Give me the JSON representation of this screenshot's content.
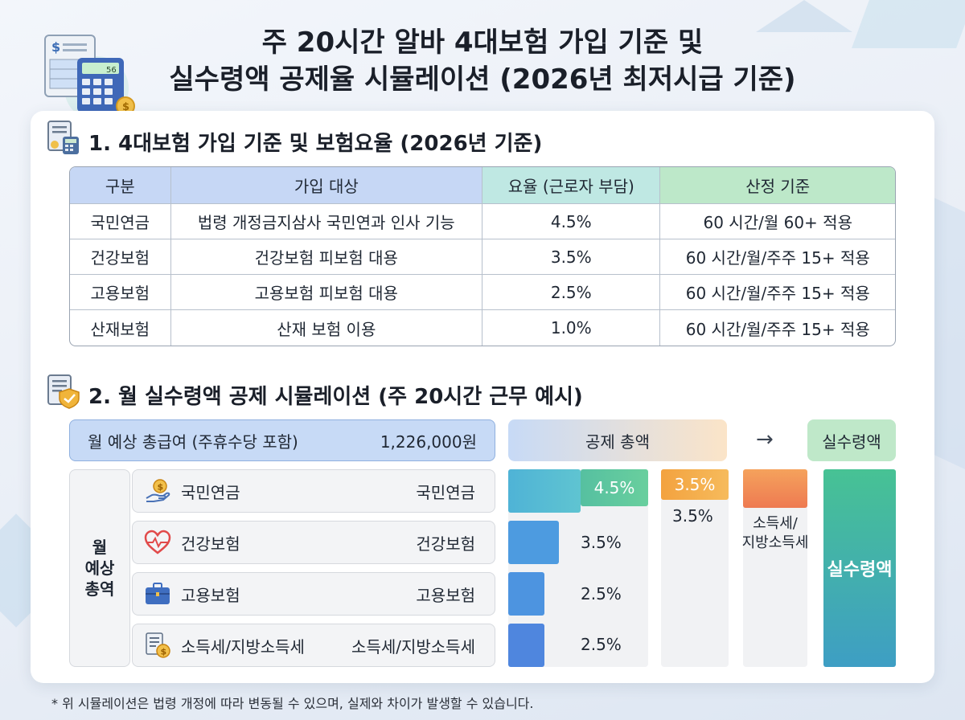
{
  "title": {
    "line1": "주 20시간 알바 4대보험 가입 기준 및",
    "line2": "실수령액 공제율 시뮬레이션 (2026년 최저시급 기준)"
  },
  "header_icon": {
    "calculator_display": "56"
  },
  "section1": {
    "title": "1. 4대보험 가입 기준 및 보험요율 (2026년 기준)",
    "headers": [
      "구분",
      "가입 대상",
      "요율 (근로자 부담)",
      "산정 기준"
    ],
    "rows": [
      [
        "국민연금",
        "법령 개정금지삼사 국민연과 인사 기능",
        "4.5%",
        "60 시간/월  60+ 적용"
      ],
      [
        "건강보험",
        "건강보험 피보험 대용",
        "3.5%",
        "60 시간/월/주주 15+ 적용"
      ],
      [
        "고용보험",
        "고용보험 피보험 대용",
        "2.5%",
        "60 시간/월/주주 15+ 적용"
      ],
      [
        "산재보험",
        "산재 보험 이용",
        "1.0%",
        "60 시간/월/주주 15+ 적용"
      ]
    ]
  },
  "section2": {
    "title": "2. 월 실수령액 공제 시뮬레이션 (주 20시간 근무 예시)",
    "gross_label": "월 예상 총급여 (주휴수당 포함)",
    "gross_value": "1,226,000원",
    "deduction_header": "공제 총액",
    "arrow": "→",
    "net_header": "실수령액",
    "side_label": "월\n예상\n총역",
    "items": [
      {
        "icon": "coin-hand-icon",
        "name": "국민연금",
        "name2": "국민연금"
      },
      {
        "icon": "heart-pulse-icon",
        "name": "건강보험",
        "name2": "건강보험"
      },
      {
        "icon": "briefcase-icon",
        "name": "고용보험",
        "name2": "고용보험"
      },
      {
        "icon": "tax-document-icon",
        "name": "소득세/지방소득세",
        "name2": "소득세/지방소득세"
      }
    ],
    "bar_pcts": [
      "4.5%",
      "3.5%",
      "2.5%",
      "2.5%"
    ],
    "bar_values": [
      4.5,
      3.5,
      2.5,
      2.5
    ],
    "col2_box": "3.5%",
    "col2_text": "3.5%",
    "tax_label": "소득세/\n지방소득세",
    "net_bar_label": "실수령액"
  },
  "footnote": "* 위 시뮬레이션은 법령 개정에 따라 변동될 수 있으며, 실제와 차이가 발생할 수 있습니다.",
  "colors": {
    "blue_header": "#c6d7f5",
    "teal_header": "#bfe8e3",
    "green_header": "#bde8c9",
    "bar_blue": "#4f8fe0",
    "bar_teal": "#55c0c8",
    "pct_green": "#5cc59a",
    "pct_orange": "#f3a552",
    "net_green": "#47c294"
  }
}
